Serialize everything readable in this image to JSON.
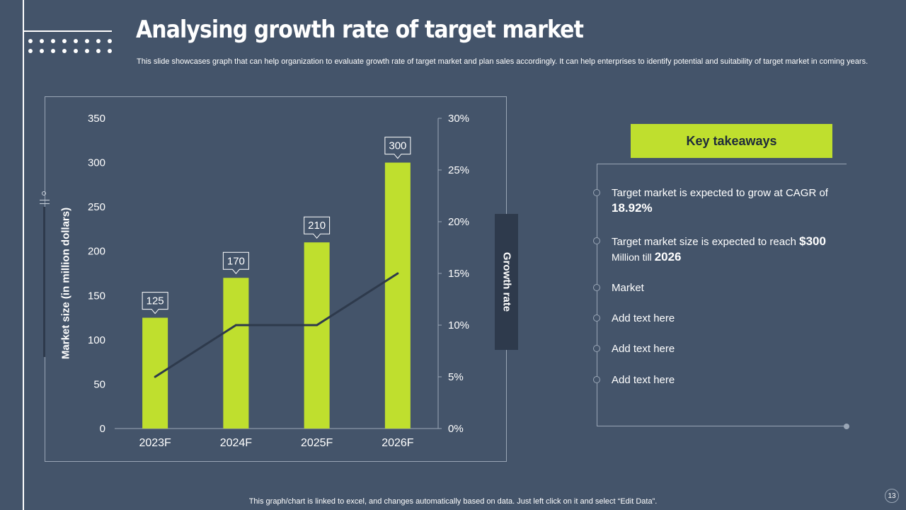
{
  "slide": {
    "title": "Analysing growth rate of target market",
    "subtitle": "This slide showcases graph that can help organization to evaluate growth rate of target market and plan sales accordingly. It can help enterprises to identify potential and suitability of target market in coming years.",
    "footer": "This graph/chart is linked to excel,  and changes automatically based on data. Just left click on it and select “Edit Data”.",
    "page_number": "13"
  },
  "colors": {
    "background": "#44546a",
    "bar": "#bfdf2e",
    "line": "#2e3a4c",
    "accent_text": "#1e2a3a"
  },
  "chart_data": {
    "type": "bar",
    "categories": [
      "2023F",
      "2024F",
      "2025F",
      "2026F"
    ],
    "series": [
      {
        "name": "Market size",
        "type": "bar",
        "axis": "left",
        "values": [
          125,
          170,
          210,
          300
        ]
      },
      {
        "name": "Growth rate",
        "type": "line",
        "axis": "right",
        "values": [
          5,
          10,
          10,
          15
        ]
      }
    ],
    "ylabel": "Market size (in million dollars)",
    "y2label": "Growth rate",
    "ylim": [
      0,
      350
    ],
    "yticks": [
      0,
      50,
      100,
      150,
      200,
      250,
      300,
      350
    ],
    "y2lim": [
      0,
      30
    ],
    "y2ticks": [
      "0%",
      "5%",
      "10%",
      "15%",
      "20%",
      "25%",
      "30%"
    ],
    "data_labels": [
      "125",
      "170",
      "210",
      "300"
    ],
    "grid": false
  },
  "takeaways": {
    "header": "Key takeaways",
    "items": [
      {
        "pre": "Target market is expected to grow at CAGR of ",
        "bold": "18.92%",
        "post": ""
      },
      {
        "pre": "Target market size is expected to reach ",
        "bold": "$300",
        "mid": " Million till ",
        "bold2": "2026"
      },
      {
        "text": "Market"
      },
      {
        "text": "Add text here"
      },
      {
        "text": "Add text here"
      },
      {
        "text": "Add text here"
      }
    ]
  }
}
